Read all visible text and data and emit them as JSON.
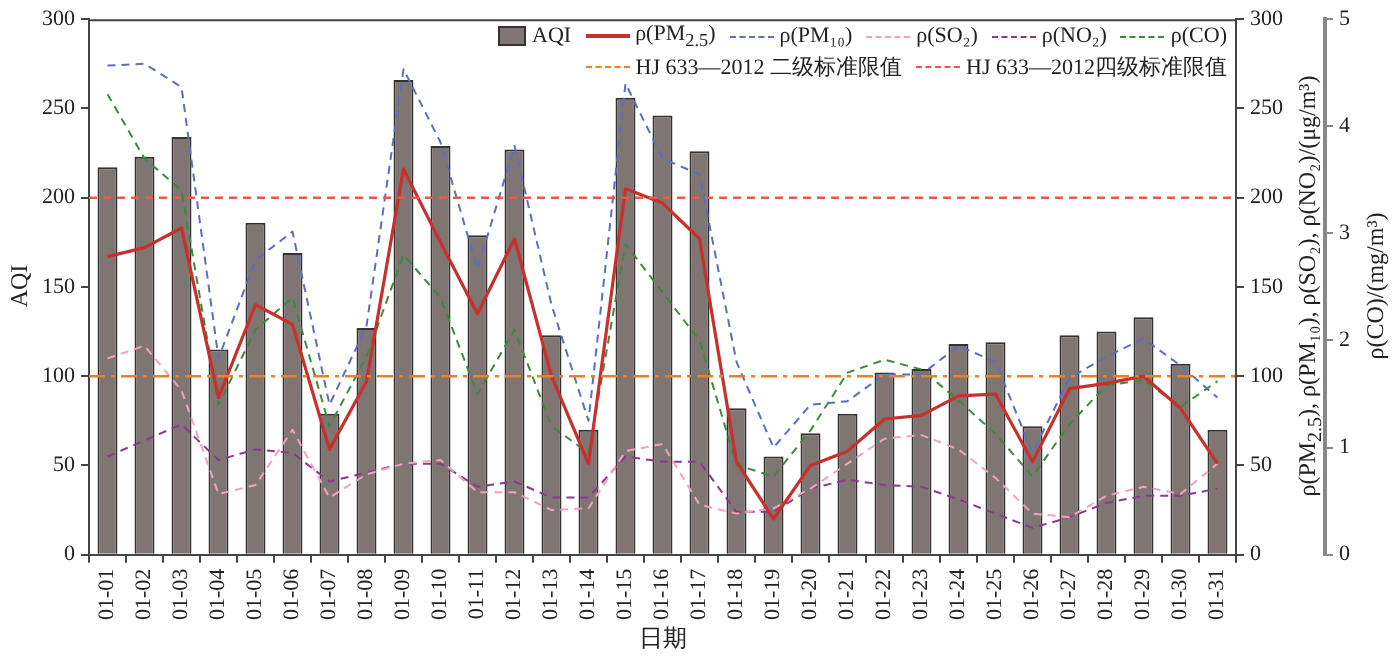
{
  "chart_data": {
    "type": "bar",
    "xlabel": "日期",
    "ylabel": "AQI",
    "y2label": "ρ(PM$_{2.5}$), ρ(PM₁₀), ρ(SO₂), ρ(NO₂)/(μg/m³)",
    "y3label": "ρ(CO)/(mg/m³)",
    "categories": [
      "01-01",
      "01-02",
      "01-03",
      "01-04",
      "01-05",
      "01-06",
      "01-07",
      "01-08",
      "01-09",
      "01-10",
      "01-11",
      "01-12",
      "01-13",
      "01-14",
      "01-15",
      "01-16",
      "01-17",
      "01-18",
      "01-19",
      "01-20",
      "01-21",
      "01-22",
      "01-23",
      "01-24",
      "01-25",
      "01-26",
      "01-27",
      "01-28",
      "01-29",
      "01-30",
      "01-31"
    ],
    "series": [
      {
        "name": "AQI",
        "color": "#7f7573",
        "values": [
          217,
          223,
          234,
          115,
          186,
          169,
          79,
          127,
          266,
          229,
          179,
          227,
          123,
          70,
          256,
          246,
          226,
          82,
          55,
          68,
          79,
          102,
          104,
          118,
          119,
          72,
          123,
          125,
          133,
          107,
          70
        ]
      },
      {
        "name": "ρ(PM$_{2.5}$)",
        "type": "line",
        "axis": "y2",
        "color": "#c8302c",
        "line_style": "solid",
        "values": [
          167,
          172,
          183,
          88,
          140,
          129,
          59,
          97,
          216,
          175,
          135,
          177,
          100,
          51,
          205,
          197,
          177,
          52,
          20,
          50,
          58,
          76,
          78,
          89,
          90,
          52,
          93,
          96,
          100,
          82,
          51
        ]
      },
      {
        "name": "ρ(PM₁₀)",
        "type": "line",
        "axis": "y2",
        "color": "#5b6fc0",
        "line_style": "dashed",
        "values": [
          274,
          275,
          262,
          110,
          165,
          181,
          84,
          128,
          272,
          231,
          160,
          229,
          140,
          75,
          264,
          222,
          213,
          108,
          60,
          84,
          86,
          101,
          101,
          117,
          108,
          57,
          99,
          111,
          121,
          106,
          88
        ]
      },
      {
        "name": "ρ(SO₂)",
        "type": "line",
        "axis": "y2",
        "color": "#f4a0c0",
        "line_style": "dashed",
        "values": [
          110,
          117,
          92,
          34,
          39,
          70,
          32,
          45,
          51,
          53,
          35,
          35,
          25,
          26,
          58,
          62,
          28,
          23,
          26,
          37,
          51,
          65,
          67,
          59,
          43,
          23,
          21,
          33,
          38,
          34,
          51
        ]
      },
      {
        "name": "ρ(NO₂)",
        "type": "line",
        "axis": "y2",
        "color": "#8b3a8b",
        "line_style": "dashed",
        "values": [
          55,
          64,
          73,
          53,
          59,
          57,
          41,
          46,
          51,
          51,
          38,
          41,
          32,
          32,
          55,
          52,
          52,
          24,
          24,
          37,
          42,
          39,
          38,
          31,
          23,
          15,
          21,
          29,
          33,
          33,
          37
        ]
      },
      {
        "name": "ρ(CO)",
        "type": "line",
        "axis": "y3",
        "color": "#3d8a3d",
        "line_style": "dashed",
        "values": [
          4.3,
          3.7,
          3.4,
          1.4,
          2.1,
          2.4,
          1.2,
          1.85,
          2.8,
          2.4,
          1.5,
          2.1,
          1.2,
          0.95,
          2.9,
          2.45,
          2.0,
          0.84,
          0.73,
          1.16,
          1.7,
          1.82,
          1.73,
          1.44,
          1.13,
          0.73,
          1.22,
          1.58,
          1.63,
          1.38,
          1.62
        ]
      }
    ],
    "ylim": [
      0,
      300
    ],
    "yticks": [
      0,
      50,
      100,
      150,
      200,
      250,
      300
    ],
    "y2lim": [
      0,
      300
    ],
    "y2ticks": [
      0,
      50,
      100,
      150,
      200,
      250,
      300
    ],
    "y3lim": [
      0,
      5
    ],
    "y3ticks": [
      0,
      1,
      2,
      3,
      4,
      5
    ],
    "ref_lines": [
      {
        "axis": "y",
        "value": 100,
        "label": "HJ 633—2012 二级标准限值",
        "color": "#f07f1e",
        "line_style": "dashdot"
      },
      {
        "axis": "y",
        "value": 200,
        "label": "HJ 633—2012四级标准限值",
        "color": "#f0564a",
        "line_style": "dashed"
      }
    ],
    "legend": "top right",
    "grid": false,
    "marker": "none"
  }
}
